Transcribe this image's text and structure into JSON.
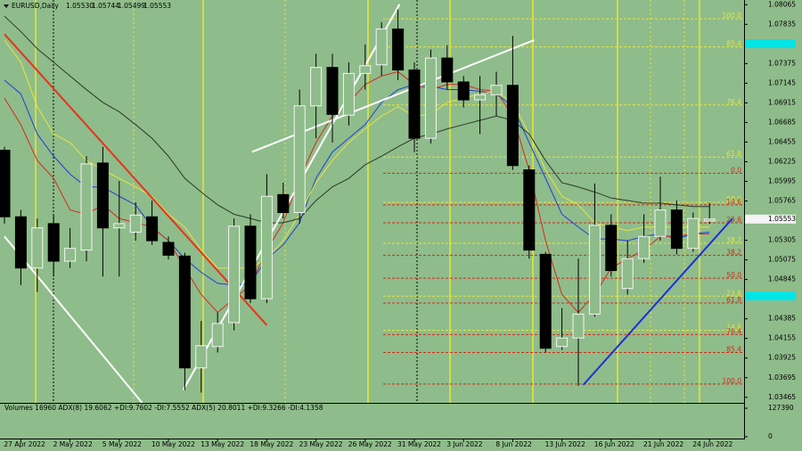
{
  "chart_data": {
    "type": "candlestick",
    "header": {
      "symbol": "EURUSD,Daily",
      "ohlc_labels": [
        "1.05530",
        "1.05744",
        "1.05499",
        "1.05553"
      ]
    },
    "categories": [
      null,
      "27 Apr 2022",
      null,
      null,
      "2 May 2022",
      null,
      null,
      "5 May 2022",
      null,
      null,
      "10 May 2022",
      null,
      null,
      "13 May 2022",
      null,
      null,
      "18 May 2022",
      null,
      null,
      "23 May 2022",
      null,
      null,
      "26 May 2022",
      null,
      null,
      "31 May 2022",
      null,
      null,
      "3 Jun 2022",
      null,
      null,
      "8 Jun 2022",
      null,
      null,
      "13 Jun 2022",
      null,
      null,
      "16 Jun 2022",
      null,
      null,
      "21 Jun 2022",
      null,
      null,
      "24 Jun 2022"
    ],
    "open": [
      1.0636,
      1.0558,
      1.0498,
      1.055,
      1.0506,
      1.0519,
      1.0621,
      1.0545,
      1.054,
      1.0558,
      1.0528,
      1.0512,
      1.0381,
      1.0406,
      1.0434,
      1.0547,
      1.0462,
      1.0584,
      1.0563,
      1.0688,
      1.0733,
      1.0677,
      1.0726,
      1.0736,
      1.0778,
      1.073,
      1.065,
      1.0744,
      1.0716,
      1.0695,
      1.0701,
      1.0712,
      1.0613,
      1.0514,
      1.0406,
      1.0416,
      1.0444,
      1.0548,
      1.0474,
      1.0509,
      1.0535,
      1.0566,
      1.0521,
      1.0553
    ],
    "high": [
      1.064,
      1.0566,
      1.0556,
      1.056,
      1.0545,
      1.0629,
      1.064,
      1.06,
      1.0575,
      1.0577,
      1.0535,
      1.0516,
      1.0436,
      1.0446,
      1.0556,
      1.0561,
      1.0608,
      1.0598,
      1.0707,
      1.0749,
      1.0749,
      1.0739,
      1.076,
      1.0786,
      1.0801,
      1.0739,
      1.0754,
      1.0759,
      1.0723,
      1.0723,
      1.0728,
      1.077,
      1.0618,
      1.0517,
      1.0451,
      1.0509,
      1.0597,
      1.0561,
      1.053,
      1.0561,
      1.0605,
      1.0577,
      1.0563,
      1.05744
    ],
    "low": [
      1.055,
      1.0478,
      1.047,
      1.0488,
      1.0498,
      1.0506,
      1.0488,
      1.0488,
      1.053,
      1.0525,
      1.0508,
      1.0355,
      1.0352,
      1.0399,
      1.0425,
      1.0457,
      1.0457,
      1.0556,
      1.055,
      1.065,
      1.0645,
      1.0665,
      1.0707,
      1.0723,
      1.0718,
      1.0634,
      1.0644,
      1.0707,
      1.0686,
      1.0655,
      1.0676,
      1.0613,
      1.0509,
      1.0399,
      1.0402,
      1.036,
      1.0441,
      1.0488,
      1.0467,
      1.0504,
      1.053,
      1.0514,
      1.0517,
      1.05499
    ],
    "close": [
      1.0558,
      1.0498,
      1.0545,
      1.0506,
      1.0521,
      1.062,
      1.0545,
      1.055,
      1.056,
      1.053,
      1.0513,
      1.0381,
      1.0407,
      1.0433,
      1.0547,
      1.0462,
      1.0582,
      1.0563,
      1.0688,
      1.0733,
      1.0678,
      1.0726,
      1.0735,
      1.0778,
      1.073,
      1.065,
      1.0744,
      1.0716,
      1.0695,
      1.0701,
      1.0712,
      1.0618,
      1.0519,
      1.0404,
      1.0416,
      1.0444,
      1.0548,
      1.0495,
      1.0509,
      1.0535,
      1.0566,
      1.0521,
      1.0556,
      1.05553
    ],
    "ylim": [
      1.034,
      1.0812
    ],
    "yticks": [
      1.08065,
      1.07835,
      1.07375,
      1.07145,
      1.06915,
      1.06685,
      1.06455,
      1.06225,
      1.05995,
      1.05765,
      1.05305,
      1.05075,
      1.04845,
      1.04385,
      1.04155,
      1.03925,
      1.03695,
      1.03465
    ],
    "last_price": 1.05553,
    "lines": [
      {
        "color": "#1f3fd8",
        "values": [
          1.0718,
          1.0702,
          1.0655,
          1.0629,
          1.0608,
          1.0593,
          1.0593,
          1.0582,
          1.0572,
          1.0546,
          1.053,
          1.0509,
          1.0493,
          1.048,
          1.0478,
          1.048,
          1.0509,
          1.0525,
          1.0551,
          1.0603,
          1.0634,
          1.065,
          1.0666,
          1.0692,
          1.0707,
          1.0713,
          1.0711,
          1.0707,
          1.0707,
          1.0705,
          1.0702,
          1.0687,
          1.0645,
          1.0603,
          1.0561,
          1.0546,
          1.0532,
          1.0532,
          1.053,
          1.0535,
          1.0538,
          1.0532,
          1.0538,
          1.054
        ]
      },
      {
        "color": "#d42a1a",
        "values": [
          1.0697,
          1.0666,
          1.0624,
          1.0603,
          1.0566,
          1.0561,
          1.0572,
          1.0556,
          1.0551,
          1.0546,
          1.053,
          1.0498,
          1.0467,
          1.0446,
          1.0462,
          1.0478,
          1.0519,
          1.0551,
          1.0603,
          1.0645,
          1.0676,
          1.0692,
          1.0713,
          1.0723,
          1.0728,
          1.0713,
          1.0707,
          1.0713,
          1.0713,
          1.0707,
          1.0705,
          1.0676,
          1.0613,
          1.053,
          1.0467,
          1.0446,
          1.0467,
          1.0498,
          1.0509,
          1.0519,
          1.0535,
          1.0535,
          1.0538,
          1.0538
        ]
      },
      {
        "color": "#e6e63a",
        "values": [
          1.0765,
          1.0739,
          1.0687,
          1.0655,
          1.0645,
          1.0624,
          1.0613,
          1.0603,
          1.0593,
          1.0582,
          1.0561,
          1.0546,
          1.0519,
          1.0498,
          1.0498,
          1.0498,
          1.0509,
          1.053,
          1.0561,
          1.0598,
          1.0624,
          1.0645,
          1.0661,
          1.0676,
          1.0687,
          1.0676,
          1.0678,
          1.0692,
          1.0697,
          1.0702,
          1.0705,
          1.0692,
          1.0655,
          1.0613,
          1.0582,
          1.0572,
          1.0551,
          1.0546,
          1.0542,
          1.0546,
          1.0546,
          1.0546,
          1.0546,
          1.0546
        ]
      },
      {
        "color": "#2a3a2a",
        "values": [
          1.0793,
          1.0775,
          1.0755,
          1.0739,
          1.0723,
          1.0707,
          1.0692,
          1.0681,
          1.0666,
          1.065,
          1.0629,
          1.0603,
          1.0587,
          1.0572,
          1.0561,
          1.0556,
          1.0551,
          1.0551,
          1.0556,
          1.0577,
          1.0593,
          1.0603,
          1.0619,
          1.0629,
          1.064,
          1.065,
          1.0655,
          1.0661,
          1.0666,
          1.0671,
          1.0676,
          1.0671,
          1.0655,
          1.0624,
          1.0598,
          1.0593,
          1.0587,
          1.058,
          1.0577,
          1.0574,
          1.0574,
          1.0572,
          1.057,
          1.057
        ]
      }
    ],
    "trendlines": [
      {
        "color": "#e8321e",
        "x": [
          0,
          16
        ],
        "y": [
          1.0772,
          1.0431
        ]
      },
      {
        "color": "#ffffff",
        "x": [
          10.9,
          24.1
        ],
        "y": [
          1.0355,
          1.0807
        ]
      },
      {
        "color": "#ffffff",
        "x": [
          15.1,
          32.3
        ],
        "y": [
          1.0634,
          1.0765
        ]
      },
      {
        "color": "#ffffff",
        "x": [
          0,
          8.4
        ],
        "y": [
          1.0535,
          1.034
        ]
      },
      {
        "color": "#1c2fd6",
        "x": [
          35.3,
          44.4
        ],
        "y": [
          1.0361,
          1.0556
        ]
      }
    ],
    "fib_levels": [
      {
        "label": "100.0",
        "price": 1.079,
        "color": "#e6e63a"
      },
      {
        "label": "85.4",
        "price": 1.0757,
        "color": "#e6e63a"
      },
      {
        "label": "76.4",
        "price": 1.0689,
        "color": "#e6e63a"
      },
      {
        "label": "61.8",
        "price": 1.0628,
        "color": "#e6e63a"
      },
      {
        "label": "0.0",
        "price": 1.0609,
        "color": "#d42a1a"
      },
      {
        "label": "50.0",
        "price": 1.0575,
        "color": "#e6e63a"
      },
      {
        "label": "14.6",
        "price": 1.0572,
        "color": "#d42a1a"
      },
      {
        "label": "23.6",
        "price": 1.0551,
        "color": "#d42a1a"
      },
      {
        "label": "38.2",
        "price": 1.0527,
        "color": "#e6e63a"
      },
      {
        "label": "38.2",
        "price": 1.0513,
        "color": "#d42a1a"
      },
      {
        "label": "50.0",
        "price": 1.0486,
        "color": "#d42a1a"
      },
      {
        "label": "23.6",
        "price": 1.0465,
        "color": "#e6e63a"
      },
      {
        "label": "61.8",
        "price": 1.0457,
        "color": "#d42a1a"
      },
      {
        "label": "14.6",
        "price": 1.0425,
        "color": "#e6e63a"
      },
      {
        "label": "76.4",
        "price": 1.042,
        "color": "#d42a1a"
      },
      {
        "label": "85.4",
        "price": 1.0399,
        "color": "#d42a1a"
      },
      {
        "label": "100.0",
        "price": 1.0362,
        "color": "#d42a1a"
      }
    ],
    "volume_panel": {
      "label": "Volumes 16960 ADX(8) 19.6062 +DI:9.7602 -DI:7.5552 ADX(5) 20.8011 +DI:9.3266 -DI:4.1358",
      "ylim": [
        0,
        127390
      ],
      "yticks": [
        127390,
        0
      ]
    }
  }
}
